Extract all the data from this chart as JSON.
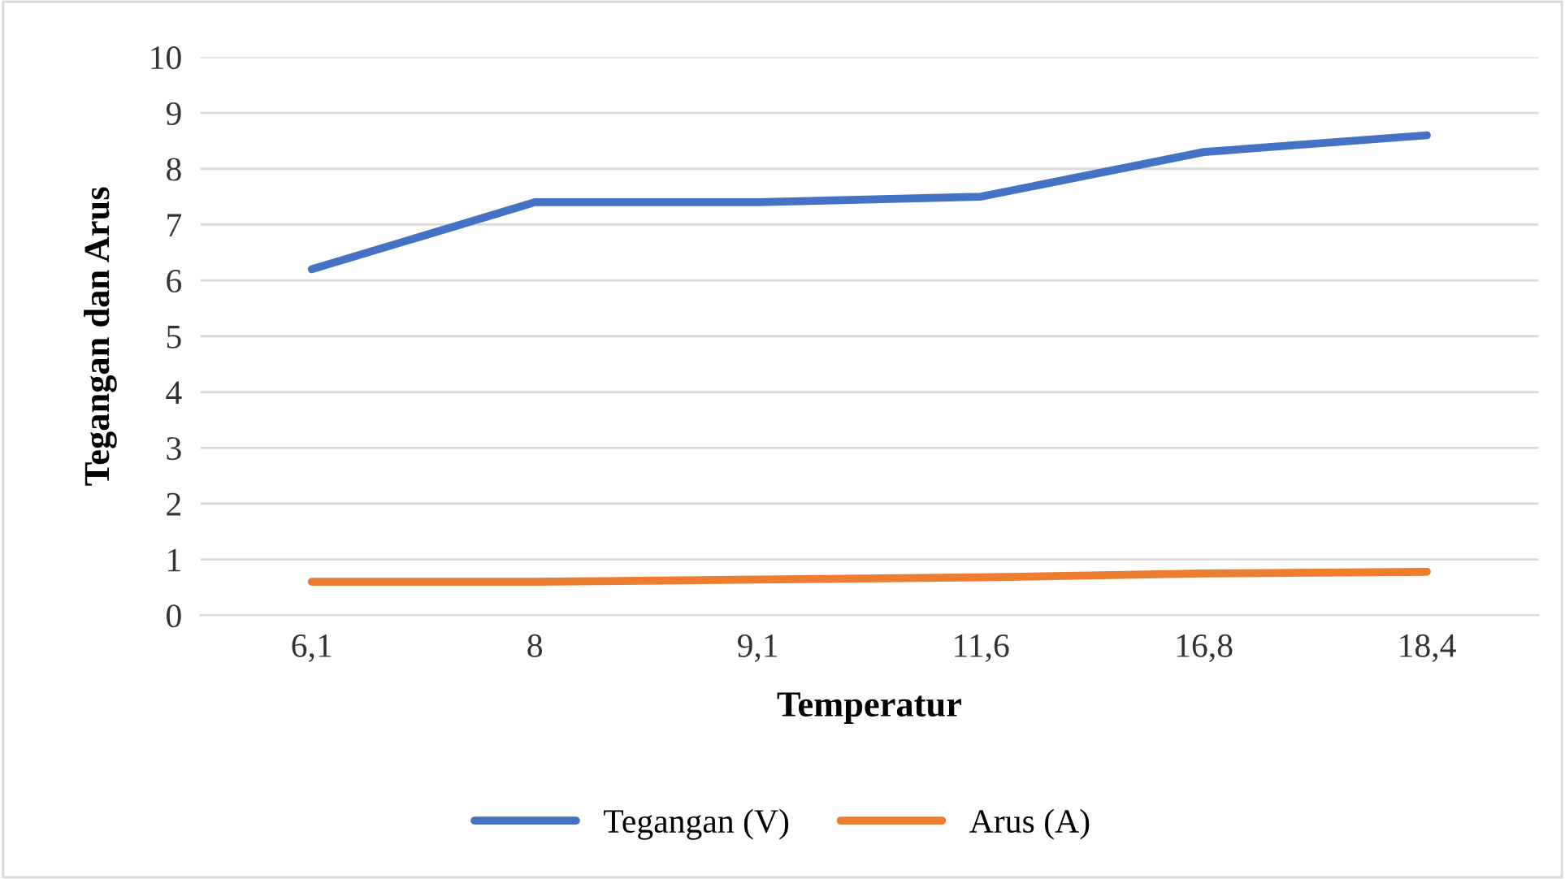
{
  "chart_data": {
    "type": "line",
    "xlabel": "Temperatur",
    "ylabel": "Tegangan dan Arus",
    "categories": [
      "6,1",
      "8",
      "9,1",
      "11,6",
      "16,8",
      "18,4"
    ],
    "series": [
      {
        "name": "Tegangan (V)",
        "color": "#4472c4",
        "values": [
          6.2,
          7.4,
          7.4,
          7.5,
          8.3,
          8.6
        ]
      },
      {
        "name": "Arus (A)",
        "color": "#ed7d31",
        "values": [
          0.6,
          0.6,
          0.64,
          0.68,
          0.75,
          0.78
        ]
      }
    ],
    "ylim": [
      0,
      10
    ],
    "yticks": [
      0,
      1,
      2,
      3,
      4,
      5,
      6,
      7,
      8,
      9,
      10
    ],
    "grid": "y",
    "legend": "bottom",
    "marker": "none",
    "line_style": "solid"
  }
}
